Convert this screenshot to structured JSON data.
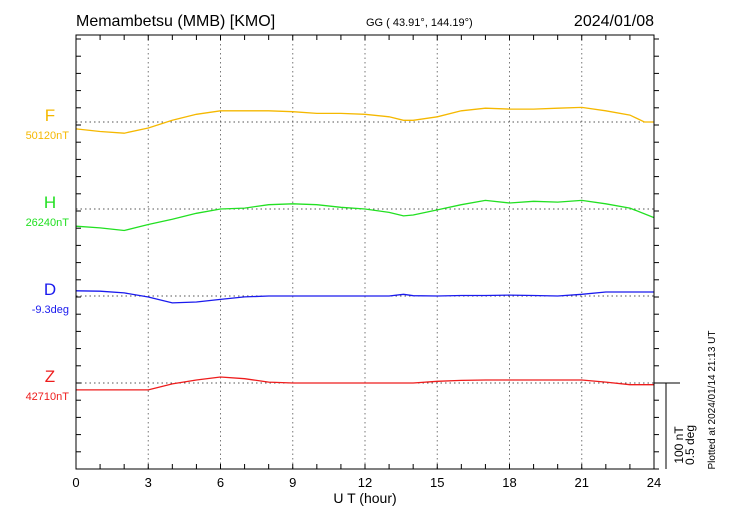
{
  "header": {
    "station": "Memambetsu (MMB)  [KMO]",
    "coords": "GG ( 43.91°, 144.19°)",
    "date": "2024/01/08"
  },
  "side_note": "Plotted at 2024/01/14 21:13 UT",
  "scale_bar": {
    "line1": "100 nT",
    "line2": "0.5 deg"
  },
  "chart_data": {
    "type": "line",
    "xlabel": "U T (hour)",
    "xlim": [
      0,
      24
    ],
    "xticks": [
      "0",
      "3",
      "6",
      "9",
      "12",
      "15",
      "18",
      "21",
      "24"
    ],
    "grid": "dotted vertical every 3 hours, dotted baseline per component",
    "scale": "100 nT or 0.5 deg per scale bar",
    "series": [
      {
        "name": "F",
        "baseline_label": "50120nT",
        "color": "#f5b800",
        "unit": "nT",
        "x": [
          0,
          1,
          2,
          3,
          4,
          5,
          6,
          7,
          8,
          9,
          10,
          11,
          12,
          13,
          13.6,
          14,
          15,
          16,
          17,
          18,
          19,
          20,
          21,
          22,
          23,
          23.6,
          24
        ],
        "y": [
          -8,
          -11,
          -13,
          -7,
          2,
          9,
          13,
          13,
          13,
          12,
          10,
          10,
          9,
          6,
          2,
          2,
          6,
          13,
          16,
          15,
          15,
          16,
          17,
          13,
          8,
          0,
          0
        ]
      },
      {
        "name": "H",
        "baseline_label": "26240nT",
        "color": "#22e022",
        "unit": "nT",
        "x": [
          0,
          1,
          2,
          3,
          4,
          5,
          6,
          7,
          8,
          9,
          10,
          11,
          12,
          13,
          13.6,
          14,
          15,
          16,
          17,
          18,
          19,
          20,
          21,
          22,
          23,
          24
        ],
        "y": [
          -20,
          -22,
          -25,
          -18,
          -12,
          -5,
          0,
          1,
          5,
          6,
          5,
          2,
          0,
          -4,
          -8,
          -7,
          -1,
          5,
          10,
          7,
          9,
          8,
          10,
          6,
          1,
          -10
        ]
      },
      {
        "name": "D",
        "baseline_label": "-9.3deg",
        "color": "#1a1aee",
        "unit": "deg",
        "x": [
          0,
          1,
          2,
          3,
          4,
          5,
          6,
          7,
          8,
          9,
          10,
          11,
          12,
          13,
          13.6,
          14,
          15,
          16,
          17,
          18,
          19,
          20,
          21,
          22,
          23,
          24
        ],
        "y": [
          0.03,
          0.028,
          0.018,
          -0.006,
          -0.04,
          -0.035,
          -0.02,
          -0.005,
          0,
          0,
          0,
          0,
          0,
          0,
          0.01,
          0.002,
          0,
          0.003,
          0.003,
          0.005,
          0.003,
          0,
          0.01,
          0.023,
          0.023,
          0.023
        ]
      },
      {
        "name": "Z",
        "baseline_label": "42710nT",
        "color": "#ee1c1c",
        "unit": "nT",
        "x": [
          0,
          1,
          2,
          3,
          4,
          5,
          6,
          7,
          8,
          9,
          10,
          11,
          12,
          13,
          14,
          15,
          16,
          17,
          18,
          19,
          20,
          21,
          22,
          23,
          24
        ],
        "y": [
          -8,
          -8,
          -8,
          -8,
          -1,
          3.5,
          7,
          5,
          1,
          0,
          0,
          0,
          0,
          0,
          0,
          2,
          3,
          3.5,
          3.5,
          3.5,
          3.5,
          3.5,
          1,
          -2,
          -2
        ]
      }
    ]
  }
}
